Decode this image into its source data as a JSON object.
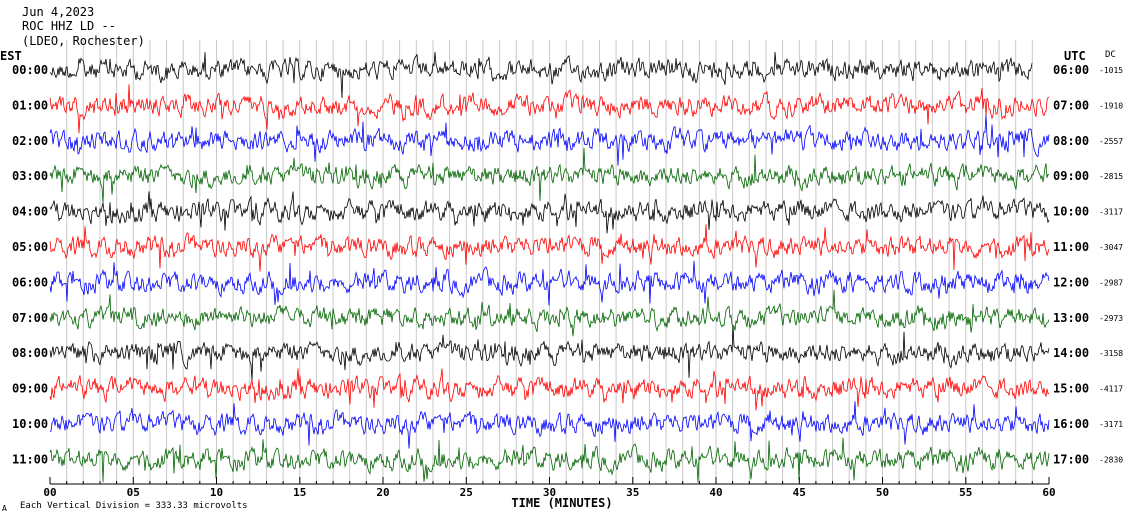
{
  "header": {
    "date": "Jun 4,2023",
    "channel": "ROC HHZ LD --",
    "station": "(LDEO, Rochester)"
  },
  "left_zone_label": "EST",
  "right_zone_label": "UTC",
  "dc_header": "DC",
  "footer": {
    "scale_mark": "A",
    "scale_note": "Each Vertical Division =  333.33 microvolts"
  },
  "colors": {
    "black": "#000000",
    "red": "#ff0000",
    "blue": "#0000ff",
    "green": "#006400"
  },
  "chart_data": {
    "type": "line",
    "title": "",
    "xlabel": "TIME (MINUTES)",
    "ylabel": "",
    "xlim": [
      0,
      60
    ],
    "x_ticks": [
      0,
      5,
      10,
      15,
      20,
      25,
      30,
      35,
      40,
      45,
      50,
      55,
      60
    ],
    "x_tick_labels": [
      "00",
      "05",
      "10",
      "15",
      "20",
      "25",
      "30",
      "35",
      "40",
      "45",
      "50",
      "55",
      "60"
    ],
    "grid": true,
    "rows": [
      {
        "est": "00:00",
        "utc": "06:00",
        "dc": "-1015",
        "color": "black",
        "end_minute": 59
      },
      {
        "est": "01:00",
        "utc": "07:00",
        "dc": "-1910",
        "color": "red",
        "end_minute": 60
      },
      {
        "est": "02:00",
        "utc": "08:00",
        "dc": "-2557",
        "color": "blue",
        "end_minute": 60
      },
      {
        "est": "03:00",
        "utc": "09:00",
        "dc": "-2815",
        "color": "green",
        "end_minute": 60
      },
      {
        "est": "04:00",
        "utc": "10:00",
        "dc": "-3117",
        "color": "black",
        "end_minute": 60
      },
      {
        "est": "05:00",
        "utc": "11:00",
        "dc": "-3047",
        "color": "red",
        "end_minute": 60
      },
      {
        "est": "06:00",
        "utc": "12:00",
        "dc": "-2987",
        "color": "blue",
        "end_minute": 60
      },
      {
        "est": "07:00",
        "utc": "13:00",
        "dc": "-2973",
        "color": "green",
        "end_minute": 60
      },
      {
        "est": "08:00",
        "utc": "14:00",
        "dc": "-3158",
        "color": "black",
        "end_minute": 60
      },
      {
        "est": "09:00",
        "utc": "15:00",
        "dc": "-4117",
        "color": "red",
        "end_minute": 60
      },
      {
        "est": "10:00",
        "utc": "16:00",
        "dc": "-3171",
        "color": "blue",
        "end_minute": 60
      },
      {
        "est": "11:00",
        "utc": "17:00",
        "dc": "-2830",
        "color": "green",
        "end_minute": 60
      }
    ]
  }
}
